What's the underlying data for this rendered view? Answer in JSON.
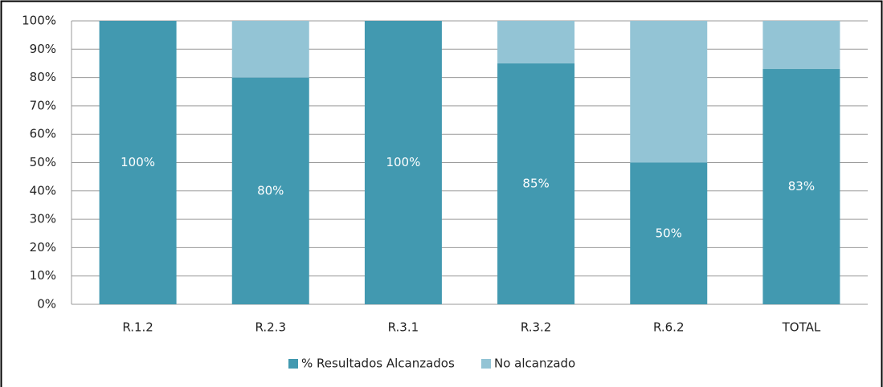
{
  "chart_data": {
    "type": "stacked_bar",
    "categories": [
      "R.1.2",
      "R.2.3",
      "R.3.1",
      "R.3.2",
      "R.6.2",
      "TOTAL"
    ],
    "series": [
      {
        "name": "% Resultados Alcanzados",
        "color": "#4299b0",
        "values": [
          100,
          80,
          100,
          85,
          50,
          83
        ],
        "value_labels": [
          "100%",
          "80%",
          "100%",
          "85%",
          "50%",
          "83%"
        ]
      },
      {
        "name": "No alcanzado",
        "color": "#93c4d5",
        "values": [
          0,
          20,
          0,
          15,
          50,
          17
        ]
      }
    ],
    "ylim": [
      0,
      100
    ],
    "yticks": [
      {
        "value": 0,
        "label": "0%"
      },
      {
        "value": 10,
        "label": "10%"
      },
      {
        "value": 20,
        "label": "20%"
      },
      {
        "value": 30,
        "label": "30%"
      },
      {
        "value": 40,
        "label": "40%"
      },
      {
        "value": 50,
        "label": "50%"
      },
      {
        "value": 60,
        "label": "60%"
      },
      {
        "value": 70,
        "label": "70%"
      },
      {
        "value": 80,
        "label": "80%"
      },
      {
        "value": 90,
        "label": "90%"
      },
      {
        "value": 100,
        "label": "100%"
      }
    ],
    "grid": true,
    "legend": "bottom"
  }
}
